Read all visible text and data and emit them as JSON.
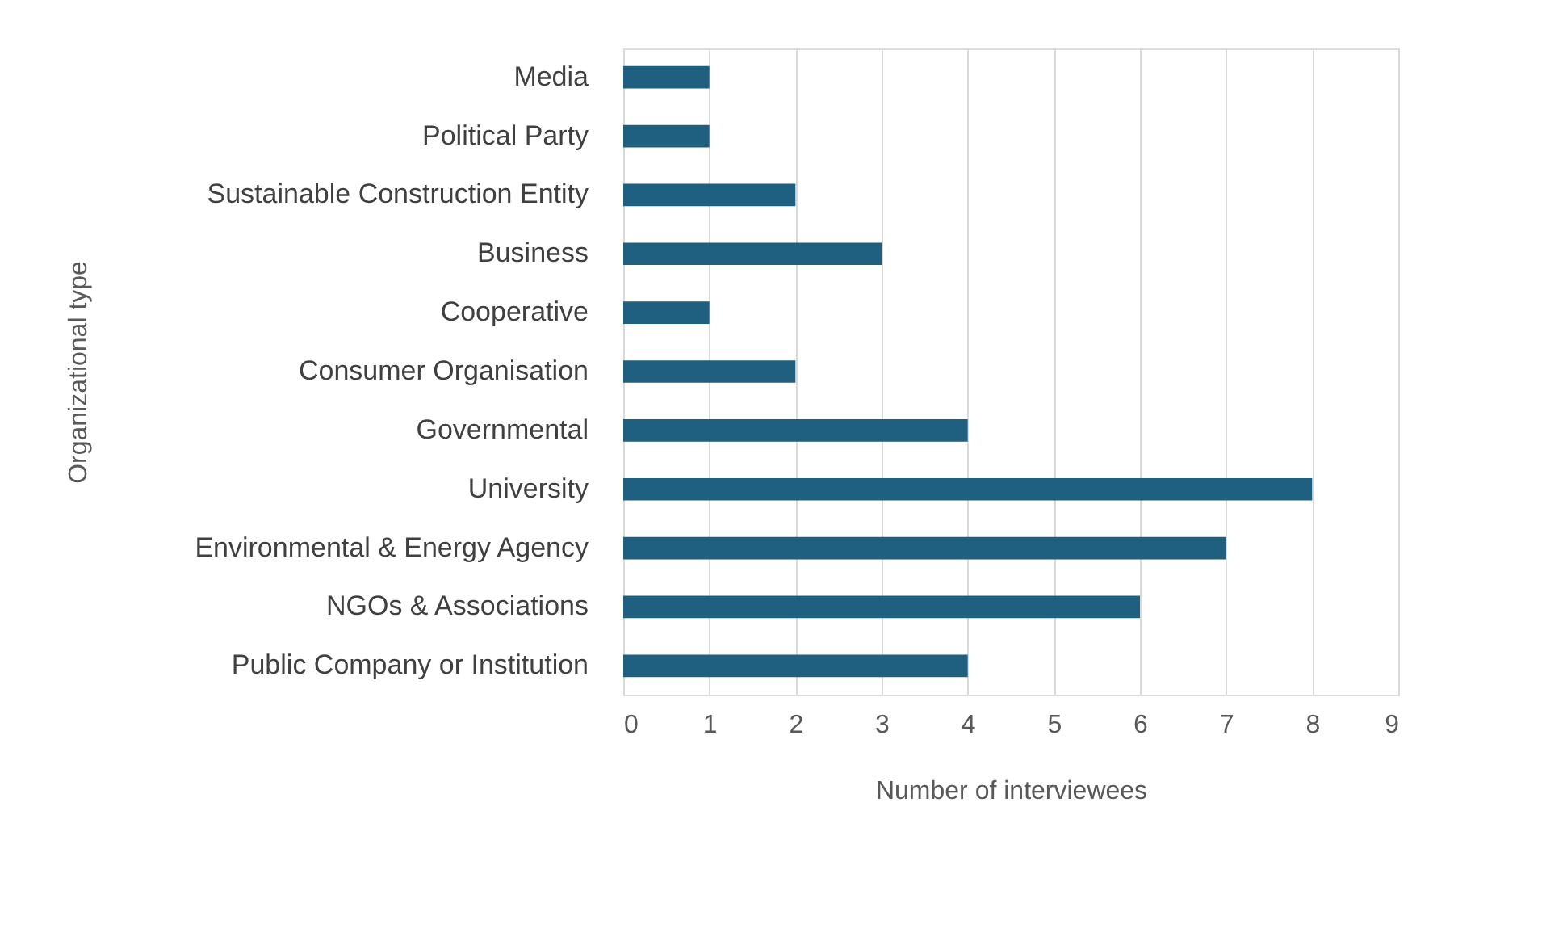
{
  "chart_data": {
    "type": "bar",
    "orientation": "horizontal",
    "xlabel": "Number of interviewees",
    "ylabel": "Organizational type",
    "categories": [
      "Media",
      "Political Party",
      "Sustainable Construction Entity",
      "Business",
      "Cooperative",
      "Consumer Organisation",
      "Governmental",
      "University",
      "Environmental & Energy Agency",
      "NGOs & Associations",
      "Public Company or Institution"
    ],
    "values": [
      1,
      1,
      2,
      3,
      1,
      2,
      4,
      8,
      7,
      6,
      4
    ],
    "color": "#1f5f7f",
    "xlim": [
      0,
      9
    ],
    "xticks": [
      0,
      1,
      2,
      3,
      4,
      5,
      6,
      7,
      8,
      9
    ],
    "grid": "x"
  }
}
